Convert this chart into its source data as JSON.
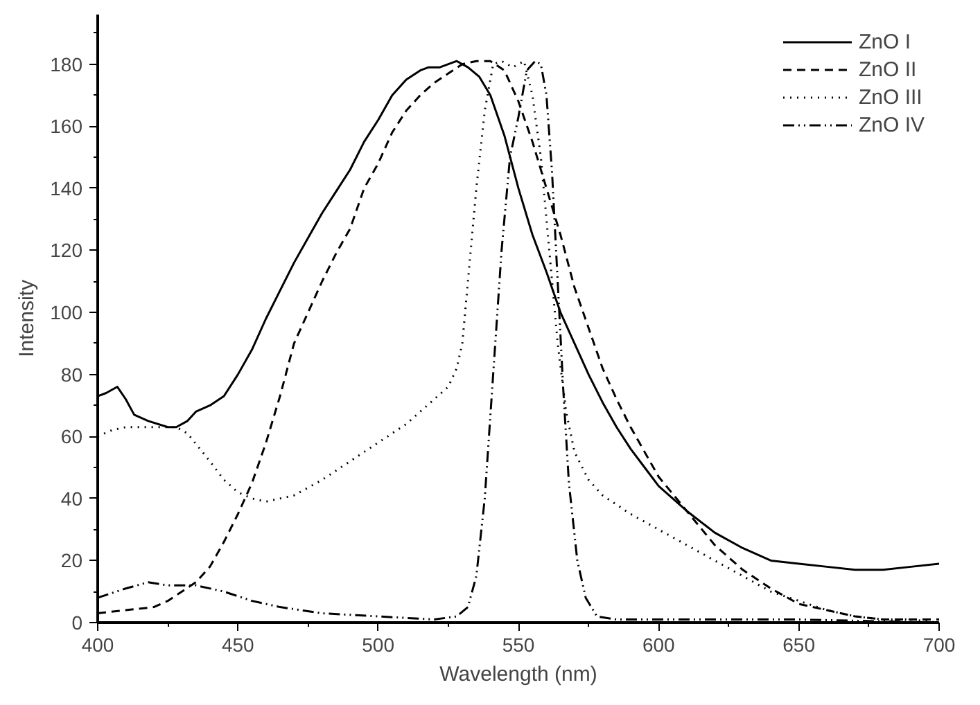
{
  "chart_data": {
    "type": "line",
    "xlabel": "Wavelength (nm)",
    "ylabel": "Intensity",
    "xlim": [
      400,
      700
    ],
    "ylim": [
      0,
      196
    ],
    "xticks": [
      400,
      {
        "value": 425,
        "label": null
      },
      450,
      {
        "value": 475,
        "label": null
      },
      500,
      {
        "value": 525,
        "label": null
      },
      550,
      {
        "value": 575,
        "label": null
      },
      600,
      {
        "value": 625,
        "label": null
      },
      650,
      {
        "value": 675,
        "label": null
      },
      700
    ],
    "yticks": [
      0,
      {
        "value": 10,
        "label": null
      },
      20,
      {
        "value": 30,
        "label": null
      },
      40,
      {
        "value": 50,
        "label": null
      },
      60,
      {
        "value": 70,
        "label": null
      },
      80,
      {
        "value": 90,
        "label": null
      },
      100,
      {
        "value": 110,
        "label": null
      },
      120,
      {
        "value": 130,
        "label": null
      },
      140,
      {
        "value": 150,
        "label": null
      },
      160,
      {
        "value": 170,
        "label": null
      },
      180,
      {
        "value": 190,
        "label": null
      }
    ],
    "grid": false,
    "legend": "top right",
    "marker": "none",
    "series": [
      {
        "name": "ZnO I",
        "color": "#000000",
        "line_style": "solid",
        "x": [
          400,
          403,
          407,
          410,
          413,
          418,
          425,
          428,
          432,
          435,
          440,
          445,
          450,
          455,
          460,
          465,
          470,
          475,
          480,
          485,
          490,
          495,
          500,
          505,
          510,
          515,
          518,
          522,
          528,
          532,
          536,
          540,
          545,
          550,
          555,
          560,
          565,
          570,
          575,
          580,
          585,
          590,
          595,
          600,
          610,
          620,
          630,
          640,
          650,
          660,
          670,
          680,
          690,
          700
        ],
        "values": [
          73,
          74,
          76,
          72,
          67,
          65,
          63,
          63,
          65,
          68,
          70,
          73,
          80,
          88,
          98,
          107,
          116,
          124,
          132,
          139,
          146,
          155,
          162,
          170,
          175,
          178,
          179,
          179,
          181,
          179,
          176,
          170,
          157,
          140,
          125,
          113,
          100,
          90,
          80,
          71,
          63,
          56,
          50,
          44,
          36,
          29,
          24,
          20,
          19,
          18,
          17,
          17,
          18,
          19
        ]
      },
      {
        "name": "ZnO II",
        "color": "#000000",
        "line_style": "dashed",
        "x": [
          400,
          410,
          420,
          425,
          430,
          435,
          440,
          445,
          450,
          455,
          460,
          465,
          470,
          475,
          480,
          485,
          490,
          495,
          500,
          505,
          510,
          515,
          520,
          525,
          530,
          535,
          540,
          545,
          550,
          555,
          560,
          565,
          570,
          575,
          580,
          585,
          590,
          595,
          600,
          610,
          620,
          630,
          640,
          650,
          660,
          670,
          680,
          690,
          700
        ],
        "values": [
          3,
          4,
          5,
          7,
          10,
          13,
          18,
          26,
          35,
          45,
          58,
          73,
          90,
          100,
          110,
          119,
          127,
          140,
          148,
          158,
          165,
          170,
          174,
          177,
          180,
          181,
          181,
          178,
          168,
          155,
          140,
          125,
          108,
          95,
          82,
          72,
          63,
          55,
          47,
          36,
          25,
          17,
          11,
          6,
          4,
          2,
          1,
          1,
          1
        ]
      },
      {
        "name": "ZnO III",
        "color": "#000000",
        "line_style": "dotted",
        "x": [
          400,
          405,
          410,
          420,
          428,
          432,
          440,
          445,
          450,
          455,
          460,
          470,
          480,
          490,
          500,
          510,
          520,
          525,
          528,
          530,
          532,
          535,
          538,
          541,
          544,
          548,
          552,
          555,
          558,
          561,
          564,
          567,
          570,
          575,
          580,
          590,
          600,
          610,
          620,
          630,
          640,
          650,
          660,
          670,
          680,
          690,
          700
        ],
        "values": [
          60,
          62,
          63,
          63,
          63,
          61,
          52,
          46,
          42,
          40,
          39,
          41,
          46,
          52,
          58,
          64,
          72,
          76,
          82,
          90,
          110,
          140,
          165,
          180,
          181,
          179,
          181,
          170,
          150,
          120,
          90,
          68,
          55,
          46,
          41,
          35,
          30,
          25,
          20,
          15,
          10,
          7,
          4,
          2,
          1,
          1,
          0
        ]
      },
      {
        "name": "ZnO IV",
        "color": "#000000",
        "line_style": "dashdot",
        "x": [
          400,
          410,
          418,
          425,
          435,
          445,
          455,
          465,
          480,
          500,
          520,
          528,
          532,
          535,
          538,
          541,
          544,
          547,
          550,
          553,
          556,
          558,
          560,
          562,
          564,
          566,
          568,
          571,
          574,
          578,
          585,
          600,
          650,
          700
        ],
        "values": [
          8,
          11,
          13,
          12,
          12,
          10,
          7,
          5,
          3,
          2,
          1,
          2,
          5,
          15,
          40,
          80,
          120,
          150,
          163,
          178,
          181,
          180,
          170,
          145,
          110,
          75,
          45,
          20,
          8,
          2,
          1,
          1,
          1,
          0
        ]
      }
    ]
  }
}
